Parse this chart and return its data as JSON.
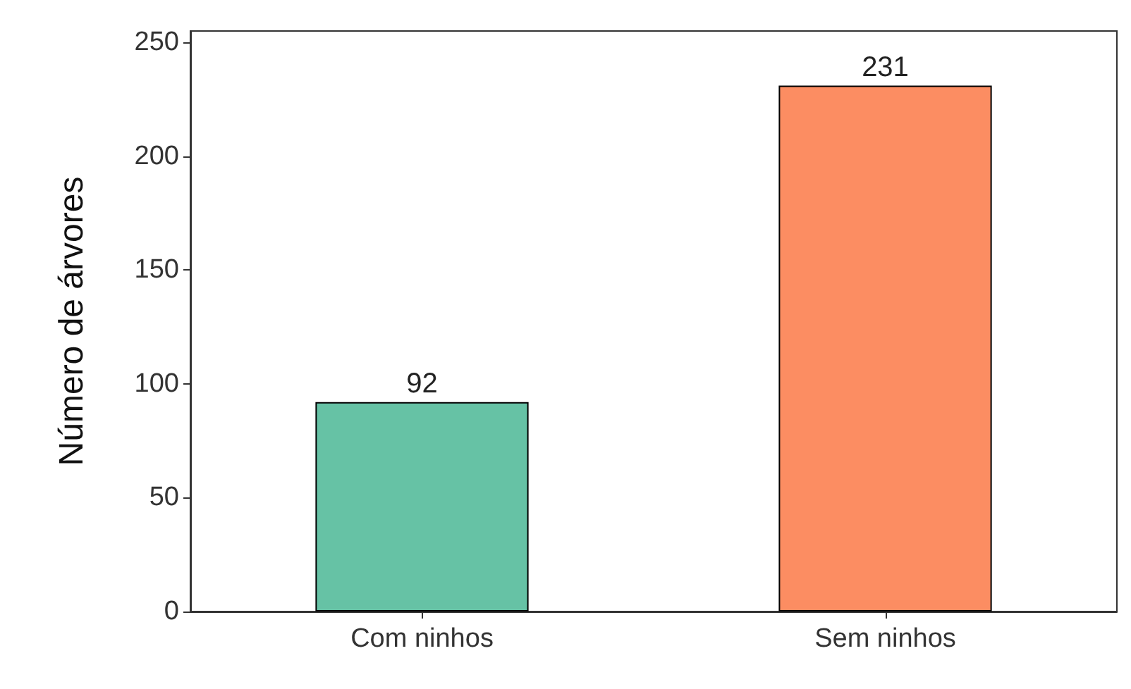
{
  "chart_data": {
    "type": "bar",
    "ylabel": "Número de árvores",
    "categories": [
      "Com ninhos",
      "Sem ninhos"
    ],
    "values": [
      92,
      231
    ],
    "colors": [
      "#66c2a5",
      "#fc8d62"
    ],
    "ylim": [
      0,
      255
    ],
    "yticks": [
      0,
      50,
      100,
      150,
      200,
      250
    ],
    "grid": false,
    "data_labels": true
  }
}
